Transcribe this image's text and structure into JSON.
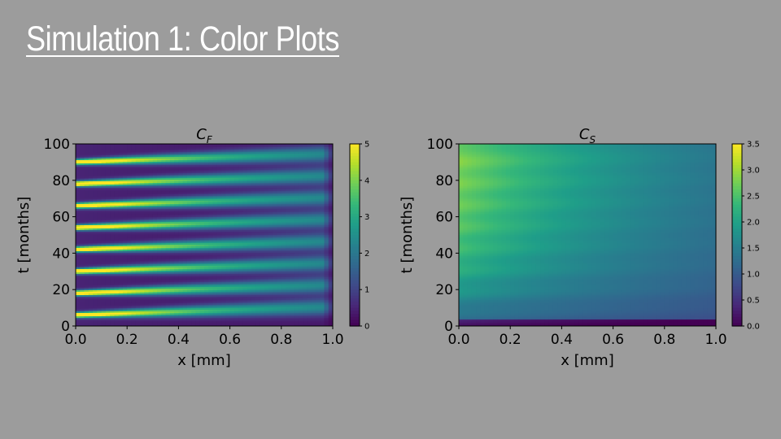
{
  "slide": {
    "title": "Simulation 1: Color Plots"
  },
  "colors": {
    "background": "#9c9c9c",
    "title_text": "#ffffff",
    "colormap": "viridis"
  },
  "chart_data": [
    {
      "type": "heatmap",
      "title": "C_F",
      "title_main": "C",
      "title_sub": "F",
      "xlabel": "x [mm]",
      "ylabel": "t [months]",
      "xlim": [
        0.0,
        1.0
      ],
      "ylim": [
        0,
        100
      ],
      "x_ticks": [
        "0.0",
        "0.2",
        "0.4",
        "0.6",
        "0.8",
        "1.0"
      ],
      "y_ticks": [
        "0",
        "20",
        "40",
        "60",
        "80",
        "100"
      ],
      "colorbar": {
        "min": 0,
        "max": 5,
        "ticks": [
          "0",
          "1",
          "2",
          "3",
          "4",
          "5"
        ]
      },
      "pattern": "periodic pulses at x=0 drifting to larger x and fading",
      "pulse_times": [
        6,
        18,
        30,
        42,
        54,
        66,
        78,
        90
      ],
      "pulse_peak": 5,
      "legend": "colorbar right"
    },
    {
      "type": "heatmap",
      "title": "C_S",
      "title_main": "C",
      "title_sub": "S",
      "xlabel": "x [mm]",
      "ylabel": "t [months]",
      "xlim": [
        0.0,
        1.0
      ],
      "ylim": [
        0,
        100
      ],
      "x_ticks": [
        "0.0",
        "0.2",
        "0.4",
        "0.6",
        "0.8",
        "1.0"
      ],
      "y_ticks": [
        "0",
        "20",
        "40",
        "60",
        "80",
        "100"
      ],
      "colorbar": {
        "min": 0.0,
        "max": 3.5,
        "ticks": [
          "0.0",
          "0.5",
          "1.0",
          "1.5",
          "2.0",
          "2.5",
          "3.0",
          "3.5"
        ]
      },
      "pattern": "accumulating concentration, highest near x=0 and late t, banded by pulses",
      "pulse_times": [
        6,
        18,
        30,
        42,
        54,
        66,
        78,
        90
      ],
      "legend": "colorbar right"
    }
  ]
}
